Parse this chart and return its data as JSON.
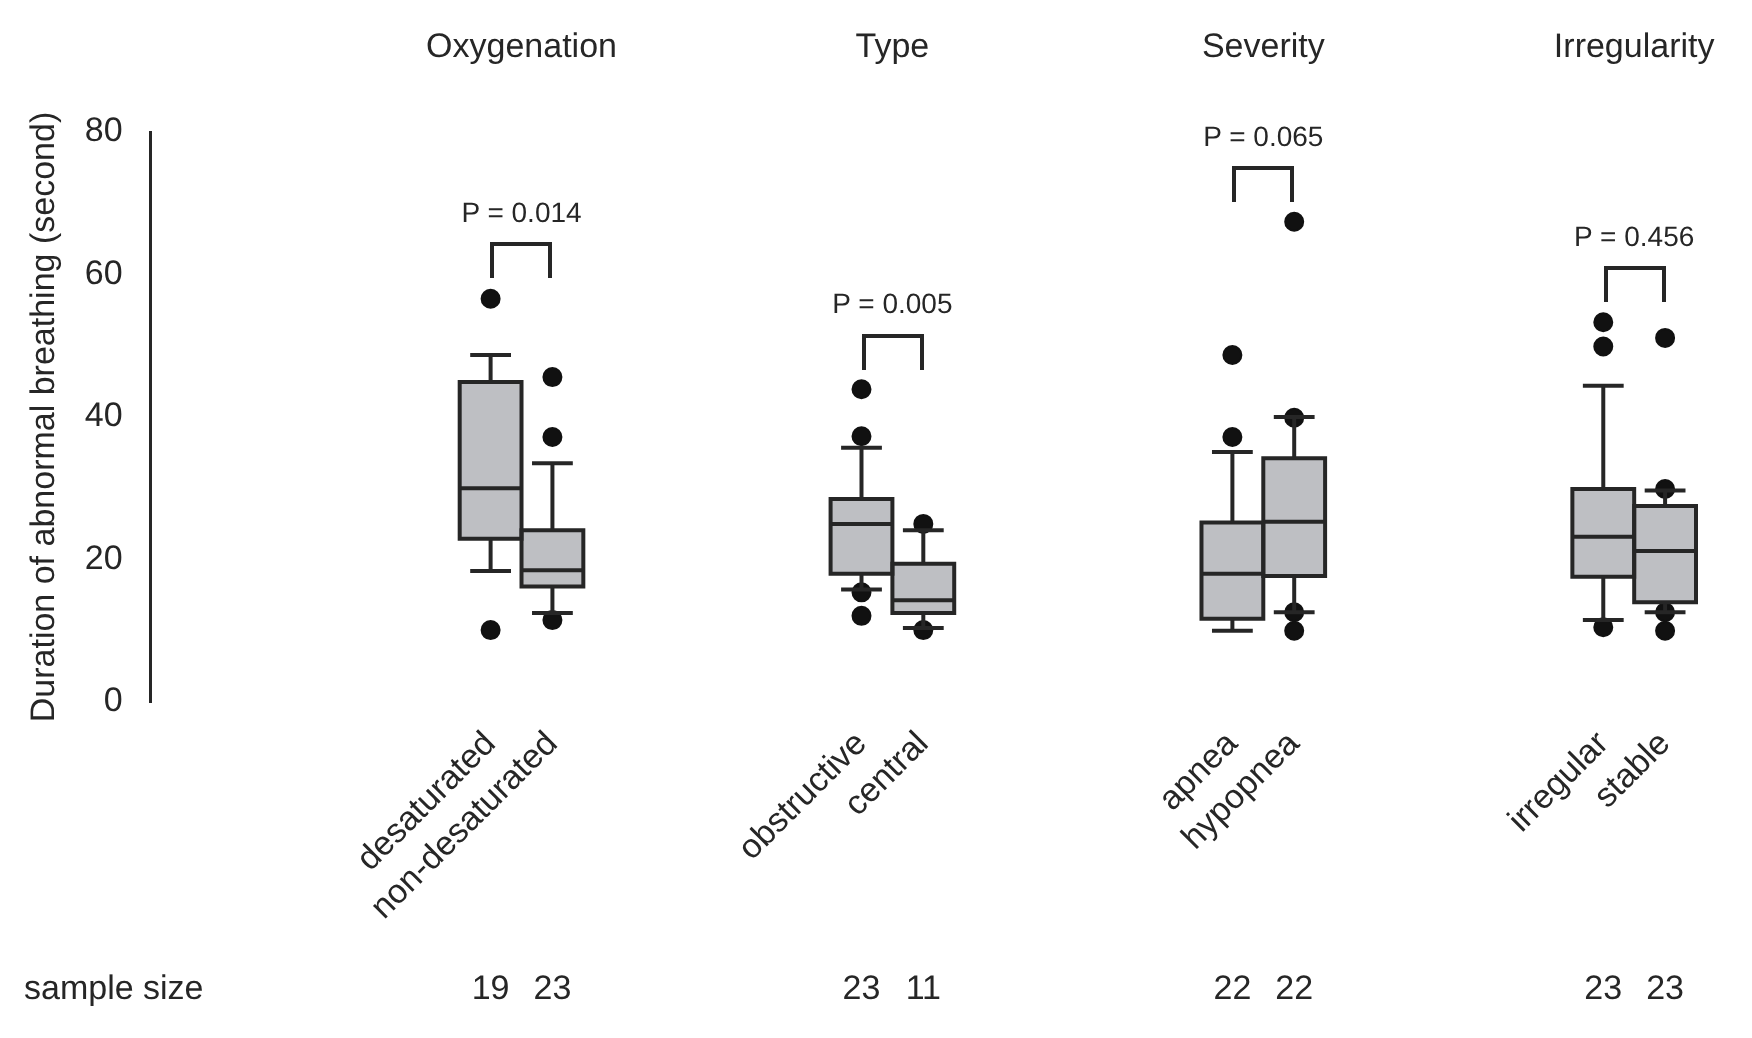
{
  "chart_data": {
    "type": "box",
    "ylabel": "Duration of abnormal breathing (second)",
    "color": "#bebfc3",
    "categories": [
      null,
      null,
      null,
      null,
      null,
      "desaturated",
      "non-desaturated",
      null,
      null,
      null,
      null,
      "obstructive",
      "central",
      null,
      null,
      null,
      null,
      "apnea",
      "hypopnea",
      null,
      null,
      null,
      null,
      "irregular",
      "stable"
    ],
    "boxes": [
      null,
      null,
      null,
      null,
      null,
      {
        "low": 18.4,
        "q1": 22.9,
        "median": 30,
        "q3": 44.9,
        "high": 48.7,
        "outliers": [
          56.6,
          10.1
        ]
      },
      {
        "low": 12.5,
        "q1": 16.2,
        "median": 18.5,
        "q3": 24.1,
        "high": 33.5,
        "outliers": [
          45.6,
          37.2,
          11.5
        ]
      },
      null,
      null,
      null,
      null,
      {
        "low": 15.8,
        "q1": 18,
        "median": 25,
        "q3": 28.5,
        "high": 35.7,
        "outliers": [
          43.9,
          37.3,
          15.4,
          12.1
        ]
      },
      {
        "low": 10.4,
        "q1": 12.5,
        "median": 14.3,
        "q3": 19.4,
        "high": 24.1,
        "outliers": [
          25,
          10.1
        ]
      },
      null,
      null,
      null,
      null,
      {
        "low": 10,
        "q1": 11.7,
        "median": 18,
        "q3": 25.2,
        "high": 35.1,
        "outliers": [
          48.7,
          37.2
        ]
      },
      {
        "low": 12.6,
        "q1": 17.7,
        "median": 25.3,
        "q3": 34.2,
        "high": 40,
        "outliers": [
          67.4,
          39.9,
          12.6,
          10
        ]
      },
      null,
      null,
      null,
      null,
      {
        "low": 11.5,
        "q1": 17.6,
        "median": 23.2,
        "q3": 29.9,
        "high": 44.4,
        "outliers": [
          53.3,
          49.9,
          10.5
        ]
      },
      {
        "low": 12.6,
        "q1": 14,
        "median": 21.2,
        "q3": 27.5,
        "high": 29.7,
        "outliers": [
          51.1,
          29.9,
          12.6,
          10
        ]
      }
    ],
    "ylim": [
      0,
      80
    ],
    "yticks": [
      0,
      20,
      40,
      60,
      80
    ],
    "grid": false,
    "annotations": [
      "Oxygenation",
      "Type",
      "Severity",
      "Irregularity",
      "P = 0.014",
      "P = 0.005",
      "P = 0.065",
      "P = 0.456",
      "sample size",
      "19",
      "23",
      "23",
      "11",
      "22",
      "22",
      "23",
      "23"
    ]
  }
}
